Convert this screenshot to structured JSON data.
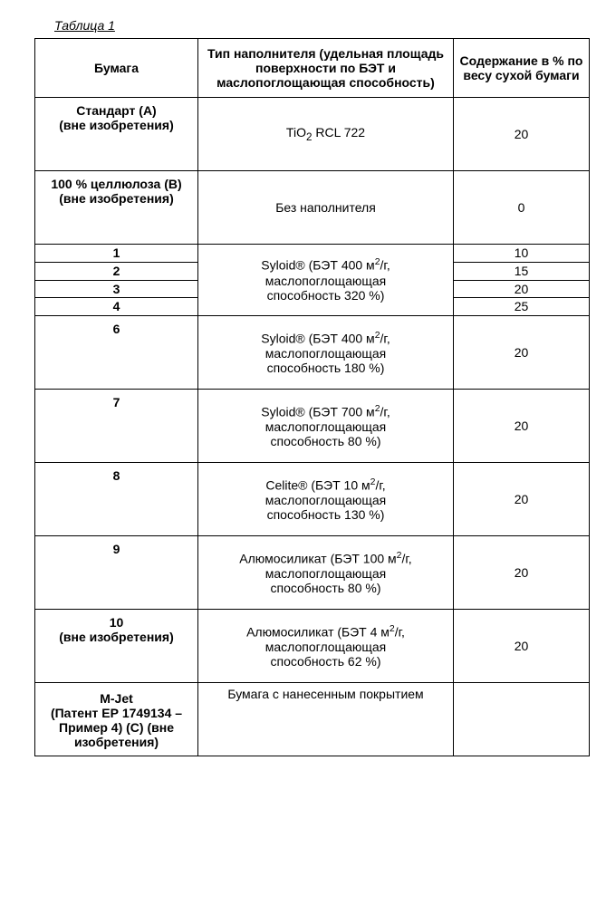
{
  "caption": "Таблица 1",
  "columns": [
    "Бумага",
    "Тип наполнителя (удельная площадь поверхности по БЭТ и маслопоглощающая способность)",
    "Содержание в % по весу сухой бумаги"
  ],
  "rows": {
    "standardA": {
      "c1_l1": "Стандарт (А)",
      "c1_l2": "(вне изобретения)",
      "c2_pre": "TiO",
      "c2_post": " RCL 722",
      "c3": "20"
    },
    "celluloseB": {
      "c1_l1": "100 % целлюлоза (В)",
      "c1_l2": "(вне изобретения)",
      "c2": "Без наполнителя",
      "c3": "0"
    },
    "grp1_filler_l1_pre": "Syloid® (БЭТ 400 м",
    "grp1_filler_l1_post": "/г,",
    "grp1_filler_l2": "маслопоглощающая",
    "grp1_filler_l3": "способность 320 %)",
    "grp1_r1": {
      "c1": "1",
      "c3": "10"
    },
    "grp1_r2": {
      "c1": "2",
      "c3": "15"
    },
    "grp1_r3": {
      "c1": "3",
      "c3": "20"
    },
    "grp1_r4": {
      "c1": "4",
      "c3": "25"
    },
    "r6": {
      "c1": "6",
      "c2_l1_pre": "Syloid® (БЭТ 400 м",
      "c2_l1_post": "/г,",
      "c2_l2": "маслопоглощающая",
      "c2_l3": "способность 180 %)",
      "c3": "20"
    },
    "r7": {
      "c1": "7",
      "c2_l1_pre": "Syloid® (БЭТ 700 м",
      "c2_l1_post": "/г,",
      "c2_l2": "маслопоглощающая",
      "c2_l3": "способность 80 %)",
      "c3": "20"
    },
    "r8": {
      "c1": "8",
      "c2_l1_pre": "Celite® (БЭТ 10 м",
      "c2_l1_post": "/г,",
      "c2_l2": "маслопоглощающая",
      "c2_l3": "способность 130 %)",
      "c3": "20"
    },
    "r9": {
      "c1": "9",
      "c2_l1_pre": "Алюмосиликат (БЭТ 100 м",
      "c2_l1_post": "/г,",
      "c2_l2": "маслопоглощающая",
      "c2_l3": "способность 80 %)",
      "c3": "20"
    },
    "r10": {
      "c1_l1": "10",
      "c1_l2": "(вне изобретения)",
      "c2_l1_pre": "Алюмосиликат (БЭТ 4 м",
      "c2_l1_post": "/г,",
      "c2_l2": "маслопоглощающая",
      "c2_l3": "способность 62 %)",
      "c3": "20"
    },
    "mjet": {
      "c1_l1": "M-Jet",
      "c1_l2": "(Патент ЕР 1749134 –",
      "c1_l3": "Пример 4) (С) (вне",
      "c1_l4": "изобретения)",
      "c2": "Бумага с нанесенным покрытием",
      "c3": ""
    }
  },
  "style": {
    "border_color": "#000000",
    "background_color": "#ffffff",
    "font_family": "Arial",
    "caption_fontsize_pt": 11,
    "cell_fontsize_pt": 11
  }
}
